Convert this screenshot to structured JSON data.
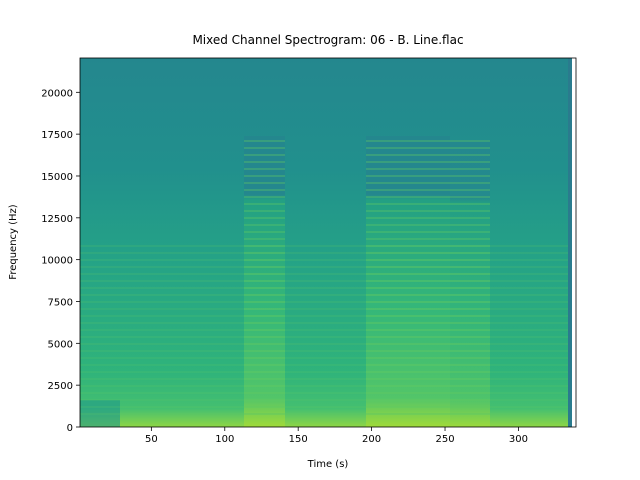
{
  "chart_data": {
    "type": "spectrogram",
    "title": "Mixed Channel Spectrogram: 06 - B. Line.flac",
    "x_label": "Time (s)",
    "y_label": "Frequency (Hz)",
    "xlim": [
      1.4,
      339.2
    ],
    "ylim": [
      0,
      22050
    ],
    "xticks": [
      50,
      100,
      150,
      200,
      250,
      300
    ],
    "yticks": [
      0,
      2500,
      5000,
      7500,
      10000,
      12500,
      15000,
      17500,
      20000
    ]
  }
}
